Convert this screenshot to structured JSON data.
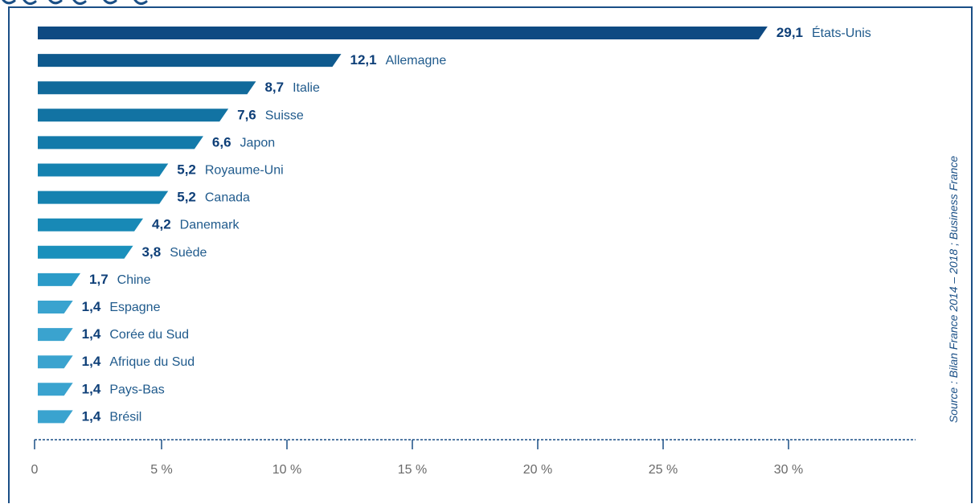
{
  "source": "Source : Bilan France 2014 – 2018 ; Business France",
  "chart_data": {
    "type": "bar",
    "orientation": "horizontal",
    "categories": [
      "États-Unis",
      "Allemagne",
      "Italie",
      "Suisse",
      "Japon",
      "Royaume-Uni",
      "Canada",
      "Danemark",
      "Suède",
      "Chine",
      "Espagne",
      "Corée du Sud",
      "Afrique du Sud",
      "Pays-Bas",
      "Brésil"
    ],
    "values": [
      29.1,
      12.1,
      8.7,
      7.6,
      6.6,
      5.2,
      5.2,
      4.2,
      3.8,
      1.7,
      1.4,
      1.4,
      1.4,
      1.4,
      1.4
    ],
    "value_labels": [
      "29,1",
      "12,1",
      "8,7",
      "7,6",
      "6,6",
      "5,2",
      "5,2",
      "4,2",
      "3,8",
      "1,7",
      "1,4",
      "1,4",
      "1,4",
      "1,4",
      "1,4"
    ],
    "xlim": [
      0,
      35
    ],
    "xticks": [
      0,
      5,
      10,
      15,
      20,
      25,
      30
    ],
    "xtick_labels": [
      "0",
      "5 %",
      "10 %",
      "15 %",
      "20 %",
      "25 %",
      "30 %"
    ],
    "grid": false,
    "colors": {
      "bars": [
        "#0e4a82",
        "#0f5a8e",
        "#116a9b",
        "#1273a3",
        "#137aaa",
        "#1582b0",
        "#1582b0",
        "#1889b6",
        "#1a90bc",
        "#2b9bc8",
        "#3aa3cf",
        "#3aa3cf",
        "#3aa3cf",
        "#3aa3cf",
        "#3aa3cf"
      ],
      "value_text": "#0e3f78",
      "label_text": "#1f5a8c",
      "axis": "#1a4f86",
      "tick_text": "#6a6a6a"
    }
  }
}
